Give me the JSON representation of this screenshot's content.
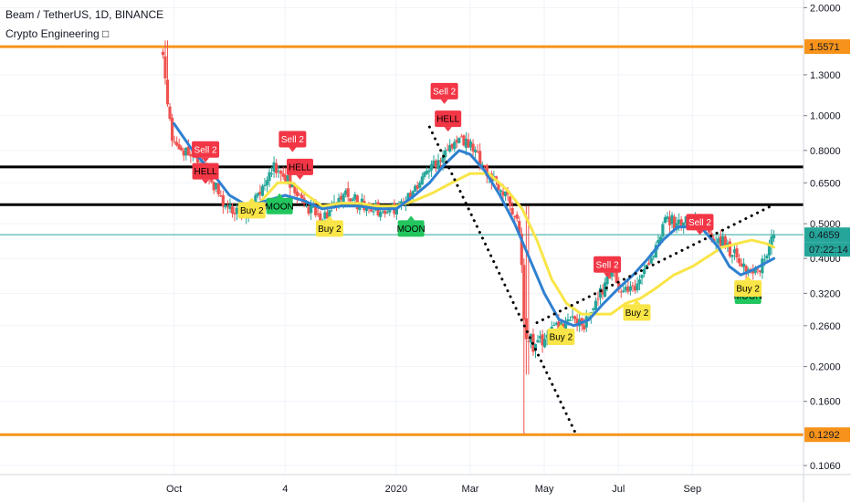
{
  "header": {
    "symbol_line": "Beam / TetherUS, 1D, BINANCE",
    "indicator_line": "Crypto Engineering □"
  },
  "chart_data": {
    "type": "candlestick",
    "scale": "log",
    "ylim": [
      0.1,
      2.1
    ],
    "grid": true,
    "price_ticks": [
      2.0,
      1.3,
      1.0,
      0.8,
      0.65,
      0.5,
      0.4,
      0.32,
      0.26,
      0.2,
      0.16,
      0.106
    ],
    "price_tick_labels": [
      "2.0000",
      "1.3000",
      "1.0000",
      "0.8000",
      "0.6500",
      "0.5000",
      "0.4000",
      "0.3200",
      "0.2600",
      "0.2000",
      "0.1600",
      "0.1060"
    ],
    "time_axis": [
      "Oct",
      "4",
      "2020",
      "Mar",
      "May",
      "Jul",
      "Sep"
    ],
    "time_tick_positions": [
      10,
      13,
      16,
      18,
      20,
      22,
      24
    ],
    "xlim": [
      5.3,
      27
    ],
    "price_tags": {
      "top_level": "1.5571",
      "bottom_level": "0.1292",
      "current": "0.4659",
      "countdown": "07:22:14"
    },
    "horizontal_levels": [
      {
        "name": "orange-top",
        "price": 1.5571,
        "color": "#f7931a"
      },
      {
        "name": "orange-bottom",
        "price": 0.1292,
        "color": "#f7931a"
      },
      {
        "name": "black-upper",
        "price": 0.72,
        "color": "#000000"
      },
      {
        "name": "black-lower",
        "price": 0.565,
        "color": "#000000"
      },
      {
        "name": "last-price",
        "price": 0.4659,
        "color": "#26a69a"
      }
    ],
    "trend_lines": [
      {
        "name": "down-trend",
        "from": [
          16.9,
          0.93
        ],
        "to": [
          20.85,
          0.13
        ]
      },
      {
        "name": "up-trend",
        "from": [
          19.8,
          0.265
        ],
        "to": [
          26.2,
          0.565
        ]
      }
    ],
    "price_path": [
      [
        9.7,
        1.5
      ],
      [
        9.8,
        1.1
      ],
      [
        9.95,
        0.85
      ],
      [
        10.2,
        0.82
      ],
      [
        10.6,
        0.75
      ],
      [
        10.9,
        0.7
      ],
      [
        11.3,
        0.58
      ],
      [
        11.6,
        0.54
      ],
      [
        12.0,
        0.55
      ],
      [
        12.3,
        0.6
      ],
      [
        12.7,
        0.72
      ],
      [
        13.0,
        0.68
      ],
      [
        13.3,
        0.6
      ],
      [
        13.6,
        0.55
      ],
      [
        14.0,
        0.52
      ],
      [
        14.4,
        0.57
      ],
      [
        14.7,
        0.6
      ],
      [
        15.1,
        0.56
      ],
      [
        15.5,
        0.55
      ],
      [
        16.0,
        0.55
      ],
      [
        16.4,
        0.6
      ],
      [
        16.8,
        0.7
      ],
      [
        17.1,
        0.75
      ],
      [
        17.4,
        0.82
      ],
      [
        17.7,
        0.87
      ],
      [
        18.0,
        0.82
      ],
      [
        18.4,
        0.72
      ],
      [
        18.8,
        0.62
      ],
      [
        19.0,
        0.58
      ],
      [
        19.3,
        0.52
      ],
      [
        19.5,
        0.25
      ],
      [
        19.7,
        0.23
      ],
      [
        20.0,
        0.24
      ],
      [
        20.4,
        0.26
      ],
      [
        20.8,
        0.27
      ],
      [
        21.1,
        0.26
      ],
      [
        21.4,
        0.3
      ],
      [
        21.8,
        0.37
      ],
      [
        22.2,
        0.32
      ],
      [
        22.6,
        0.35
      ],
      [
        23.0,
        0.42
      ],
      [
        23.3,
        0.52
      ],
      [
        23.6,
        0.5
      ],
      [
        24.0,
        0.52
      ],
      [
        24.4,
        0.48
      ],
      [
        24.8,
        0.45
      ],
      [
        25.2,
        0.4
      ],
      [
        25.5,
        0.36
      ],
      [
        25.8,
        0.38
      ],
      [
        26.0,
        0.4
      ],
      [
        26.2,
        0.48
      ]
    ],
    "blue_ma": [
      [
        10.0,
        0.95
      ],
      [
        10.5,
        0.8
      ],
      [
        11.0,
        0.7
      ],
      [
        11.5,
        0.6
      ],
      [
        12.0,
        0.56
      ],
      [
        12.5,
        0.58
      ],
      [
        13.0,
        0.6
      ],
      [
        13.5,
        0.58
      ],
      [
        14.0,
        0.55
      ],
      [
        14.5,
        0.56
      ],
      [
        15.0,
        0.56
      ],
      [
        15.5,
        0.55
      ],
      [
        16.0,
        0.55
      ],
      [
        16.5,
        0.6
      ],
      [
        16.9,
        0.65
      ],
      [
        17.3,
        0.73
      ],
      [
        17.7,
        0.8
      ],
      [
        18.0,
        0.78
      ],
      [
        18.4,
        0.7
      ],
      [
        18.8,
        0.6
      ],
      [
        19.2,
        0.5
      ],
      [
        19.6,
        0.4
      ],
      [
        20.0,
        0.32
      ],
      [
        20.4,
        0.27
      ],
      [
        20.8,
        0.26
      ],
      [
        21.2,
        0.27
      ],
      [
        21.6,
        0.3
      ],
      [
        22.0,
        0.33
      ],
      [
        22.4,
        0.36
      ],
      [
        22.8,
        0.4
      ],
      [
        23.2,
        0.45
      ],
      [
        23.6,
        0.49
      ],
      [
        24.0,
        0.49
      ],
      [
        24.3,
        0.48
      ],
      [
        24.7,
        0.43
      ],
      [
        25.0,
        0.38
      ],
      [
        25.3,
        0.36
      ],
      [
        25.6,
        0.37
      ],
      [
        26.0,
        0.39
      ],
      [
        26.2,
        0.4
      ]
    ],
    "yellow_ma": [
      [
        12.3,
        0.57
      ],
      [
        12.8,
        0.65
      ],
      [
        13.2,
        0.65
      ],
      [
        13.6,
        0.6
      ],
      [
        14.0,
        0.56
      ],
      [
        14.5,
        0.57
      ],
      [
        15.0,
        0.57
      ],
      [
        15.5,
        0.56
      ],
      [
        16.0,
        0.56
      ],
      [
        16.5,
        0.58
      ],
      [
        17.0,
        0.61
      ],
      [
        17.5,
        0.65
      ],
      [
        18.0,
        0.69
      ],
      [
        18.5,
        0.69
      ],
      [
        19.0,
        0.62
      ],
      [
        19.4,
        0.55
      ],
      [
        19.8,
        0.45
      ],
      [
        20.2,
        0.35
      ],
      [
        20.6,
        0.3
      ],
      [
        21.0,
        0.28
      ],
      [
        21.4,
        0.28
      ],
      [
        21.8,
        0.28
      ],
      [
        22.2,
        0.3
      ],
      [
        22.6,
        0.31
      ],
      [
        23.0,
        0.33
      ],
      [
        23.5,
        0.36
      ],
      [
        24.0,
        0.38
      ],
      [
        24.5,
        0.41
      ],
      [
        24.8,
        0.43
      ],
      [
        25.2,
        0.44
      ],
      [
        25.6,
        0.45
      ],
      [
        26.0,
        0.44
      ],
      [
        26.2,
        0.43
      ]
    ],
    "signals": [
      {
        "label": "Sell 2",
        "x": 10.85,
        "price": 0.805,
        "kind": "sell",
        "color": "#f23645",
        "text_color": "#ffffff"
      },
      {
        "label": "HELL",
        "x": 10.85,
        "price": 0.7,
        "kind": "sell",
        "color": "#f23645",
        "text_color": "#000000"
      },
      {
        "label": "Sell 2",
        "x": 13.2,
        "price": 0.86,
        "kind": "sell",
        "color": "#f23645",
        "text_color": "#ffffff"
      },
      {
        "label": "HELL",
        "x": 13.4,
        "price": 0.72,
        "kind": "sell",
        "color": "#f23645",
        "text_color": "#000000"
      },
      {
        "label": "Sell 2",
        "x": 17.3,
        "price": 1.17,
        "kind": "sell",
        "color": "#f23645",
        "text_color": "#ffffff"
      },
      {
        "label": "HELL",
        "x": 17.4,
        "price": 0.98,
        "kind": "sell",
        "color": "#f23645",
        "text_color": "#000000"
      },
      {
        "label": "Sell 2",
        "x": 21.7,
        "price": 0.385,
        "kind": "sell",
        "color": "#f23645",
        "text_color": "#ffffff"
      },
      {
        "label": "Sell 2",
        "x": 24.2,
        "price": 0.505,
        "kind": "sell",
        "color": "#f23645",
        "text_color": "#ffffff"
      },
      {
        "label": "Buy 2",
        "x": 12.1,
        "price": 0.545,
        "kind": "buy",
        "color": "#f9e547",
        "text_color": "#000000"
      },
      {
        "label": "MOON",
        "x": 12.85,
        "price": 0.56,
        "kind": "buy",
        "color": "#22c55e",
        "text_color": "#000000"
      },
      {
        "label": "Buy 2",
        "x": 14.2,
        "price": 0.485,
        "kind": "buy",
        "color": "#f9e547",
        "text_color": "#000000"
      },
      {
        "label": "MOON",
        "x": 16.4,
        "price": 0.485,
        "kind": "buy",
        "color": "#22c55e",
        "text_color": "#000000"
      },
      {
        "label": "Buy 2",
        "x": 20.45,
        "price": 0.242,
        "kind": "buy",
        "color": "#f9e547",
        "text_color": "#000000"
      },
      {
        "label": "Buy 2",
        "x": 22.5,
        "price": 0.283,
        "kind": "buy",
        "color": "#f9e547",
        "text_color": "#000000"
      },
      {
        "label": "MOON",
        "x": 25.5,
        "price": 0.315,
        "kind": "buy",
        "color": "#22c55e",
        "text_color": "#000000"
      },
      {
        "label": "Buy 2",
        "x": 25.5,
        "price": 0.33,
        "kind": "buy",
        "color": "#f9e547",
        "text_color": "#000000"
      }
    ],
    "colors": {
      "up": "#26a69a",
      "down": "#ef5350",
      "blue_ma": "#2f80d0",
      "yellow_ma": "#f9e547",
      "level_orange": "#f7931a",
      "price_tag_bg": "#26a69a"
    }
  }
}
